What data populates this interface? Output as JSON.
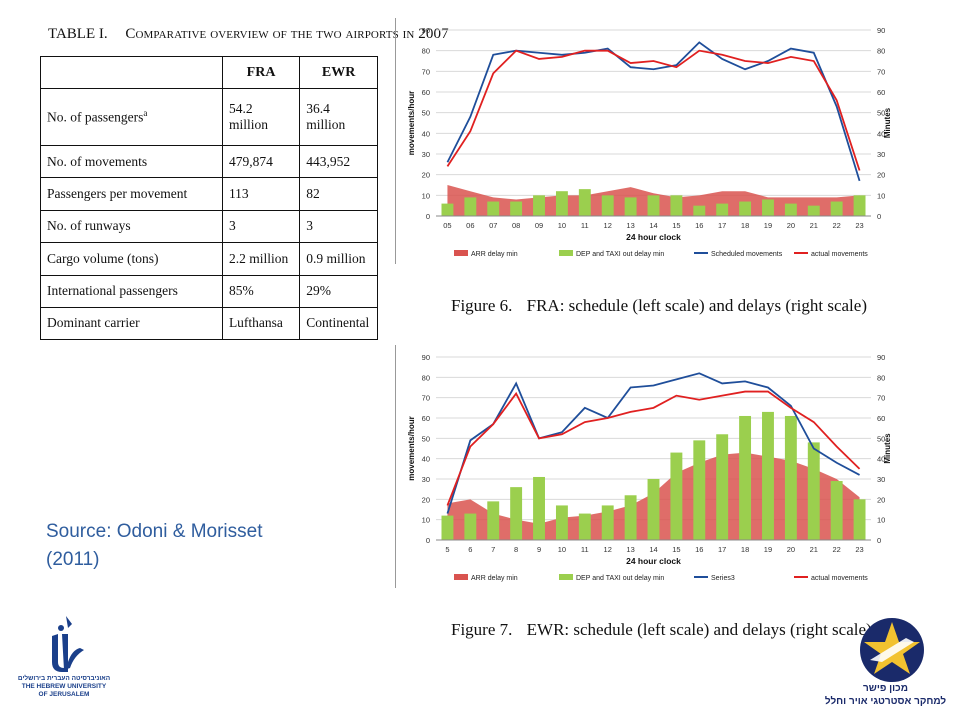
{
  "table": {
    "label": "TABLE I.",
    "caption": "Comparative overview of the two airports in 2007",
    "headers": [
      "",
      "FRA",
      "EWR"
    ],
    "rows": [
      {
        "label": "No. of passengers",
        "sup": "a",
        "fra": "54.2 million",
        "ewr": "36.4 million"
      },
      {
        "label": "No. of movements",
        "sup": "",
        "fra": "479,874",
        "ewr": "443,952"
      },
      {
        "label": "Passengers per movement",
        "sup": "",
        "fra": "113",
        "ewr": "82"
      },
      {
        "label": "No. of runways",
        "sup": "",
        "fra": "3",
        "ewr": "3"
      },
      {
        "label": "Cargo volume (tons)",
        "sup": "",
        "fra": "2.2 million",
        "ewr": "0.9 million"
      },
      {
        "label": "International passengers",
        "sup": "",
        "fra": "85%",
        "ewr": "29%"
      },
      {
        "label": "Dominant carrier",
        "sup": "",
        "fra": "Lufthansa",
        "ewr": "Continental"
      }
    ]
  },
  "source": {
    "line1": "Source: Odoni & Morisset",
    "line2": "(2011)"
  },
  "figures": {
    "fra": {
      "num": "Figure 6.",
      "text": "FRA: schedule (left scale) and delays (right scale)"
    },
    "ewr": {
      "num": "Figure 7.",
      "text": "EWR: schedule (left scale) and delays (right scale)"
    }
  },
  "logos": {
    "huji": [
      "האוניברסיטה העברית בירושלים",
      "THE HEBREW UNIVERSITY",
      "OF JERUSALEM"
    ],
    "fisher": [
      "מכון פישר",
      "למחקר אסטרטגי אויר וחלל"
    ]
  },
  "colors": {
    "arr": "#d9534f",
    "dep": "#9bcf4e",
    "scheduled": "#1f4e9a",
    "actual": "#e02020"
  },
  "chart_data": [
    {
      "id": "fra",
      "type": "bar",
      "xlabel": "24 hour clock",
      "ylabel": "movements/hour",
      "y2label": "Minutes",
      "ylim": [
        0,
        90
      ],
      "y2lim": [
        0,
        90
      ],
      "yticks": [
        0,
        10,
        20,
        30,
        40,
        50,
        60,
        70,
        80,
        90
      ],
      "categories": [
        "05",
        "06",
        "07",
        "08",
        "09",
        "10",
        "11",
        "12",
        "13",
        "14",
        "15",
        "16",
        "17",
        "18",
        "19",
        "20",
        "21",
        "22",
        "23"
      ],
      "series": [
        {
          "name": "ARR delay min",
          "kind": "area",
          "axis": "right",
          "values": [
            15,
            12,
            9,
            8,
            9,
            10,
            10,
            12,
            14,
            11,
            9,
            10,
            12,
            12,
            9,
            9,
            9,
            9,
            10
          ]
        },
        {
          "name": "DEP and TAXI out delay min",
          "kind": "bar",
          "axis": "right",
          "values": [
            6,
            9,
            7,
            7,
            10,
            12,
            13,
            10,
            9,
            10,
            10,
            5,
            6,
            7,
            8,
            6,
            5,
            7,
            10
          ]
        },
        {
          "name": "Scheduled movements",
          "kind": "line",
          "axis": "left",
          "values": [
            26,
            48,
            78,
            80,
            79,
            78,
            79,
            81,
            72,
            71,
            73,
            84,
            76,
            71,
            75,
            81,
            79,
            53,
            17
          ]
        },
        {
          "name": "actual movements",
          "kind": "line",
          "axis": "left",
          "values": [
            24,
            41,
            69,
            80,
            76,
            77,
            80,
            80,
            74,
            75,
            72,
            80,
            78,
            75,
            74,
            77,
            75,
            56,
            22
          ]
        }
      ]
    },
    {
      "id": "ewr",
      "type": "bar",
      "xlabel": "24 hour clock",
      "ylabel": "movements/hour",
      "y2label": "Minutes",
      "ylim": [
        0,
        90
      ],
      "y2lim": [
        0,
        90
      ],
      "yticks": [
        0,
        10,
        20,
        30,
        40,
        50,
        60,
        70,
        80,
        90
      ],
      "categories": [
        "5",
        "6",
        "7",
        "8",
        "9",
        "10",
        "11",
        "12",
        "13",
        "14",
        "15",
        "16",
        "17",
        "18",
        "19",
        "20",
        "21",
        "22",
        "23"
      ],
      "series": [
        {
          "name": "ARR delay min",
          "kind": "area",
          "axis": "right",
          "values": [
            18,
            20,
            13,
            10,
            8,
            11,
            12,
            14,
            17,
            23,
            33,
            38,
            42,
            43,
            41,
            39,
            35,
            30,
            21
          ]
        },
        {
          "name": "DEP and TAXI out delay min",
          "kind": "bar",
          "axis": "right",
          "values": [
            12,
            13,
            19,
            26,
            31,
            17,
            13,
            17,
            22,
            30,
            43,
            49,
            52,
            61,
            63,
            61,
            48,
            29,
            20
          ]
        },
        {
          "name": "Series3",
          "kind": "line",
          "axis": "left",
          "values": [
            13,
            49,
            57,
            77,
            50,
            53,
            65,
            60,
            75,
            76,
            79,
            82,
            77,
            78,
            75,
            66,
            45,
            38,
            32
          ]
        },
        {
          "name": "actual movements",
          "kind": "line",
          "axis": "left",
          "values": [
            17,
            46,
            57,
            72,
            50,
            52,
            58,
            60,
            63,
            65,
            71,
            69,
            71,
            73,
            73,
            65,
            58,
            46,
            35
          ]
        }
      ]
    }
  ]
}
